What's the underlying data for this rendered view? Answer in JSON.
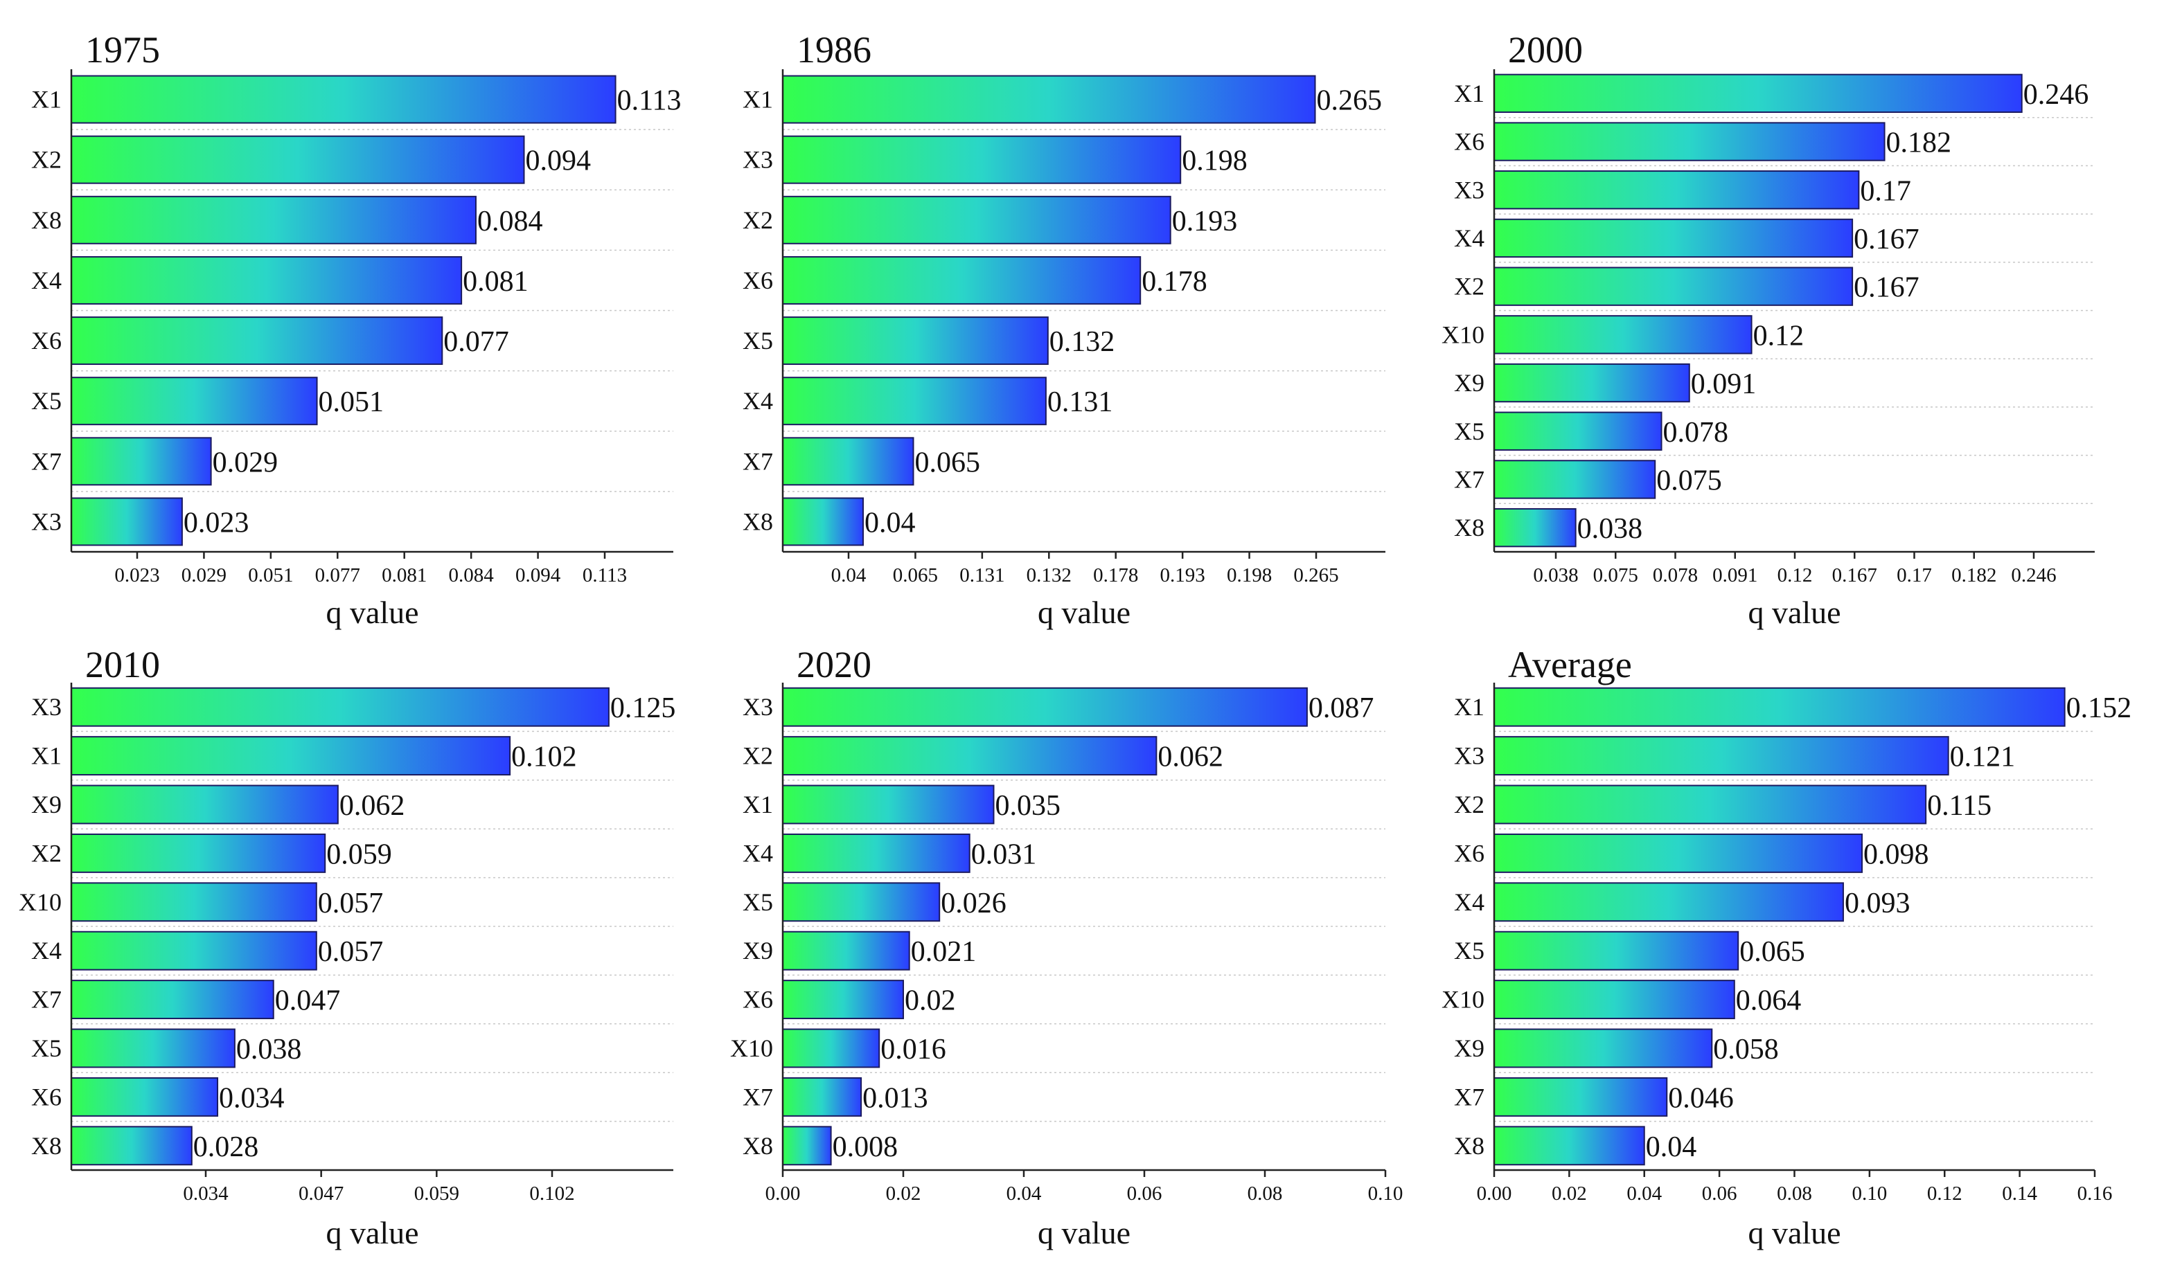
{
  "chart_data": [
    {
      "type": "bar",
      "orientation": "horizontal",
      "title": "1975",
      "xlabel": "q value",
      "categories": [
        "X1",
        "X2",
        "X8",
        "X4",
        "X6",
        "X5",
        "X7",
        "X3"
      ],
      "values": [
        0.113,
        0.094,
        0.084,
        0.081,
        0.077,
        0.051,
        0.029,
        0.023
      ],
      "value_labels": [
        "0.113",
        "0.094",
        "0.084",
        "0.081",
        "0.077",
        "0.051",
        "0.029",
        "0.023"
      ],
      "xticks": [
        0.023,
        0.029,
        0.051,
        0.077,
        0.081,
        0.084,
        0.094,
        0.113
      ],
      "xtick_labels": [
        "0.023",
        "0.029",
        "0.051",
        "0.077",
        "0.081",
        "0.084",
        "0.094",
        "0.113"
      ],
      "tick_scale": "categorical-equal-spacing",
      "xlim": [
        0,
        0.125
      ]
    },
    {
      "type": "bar",
      "orientation": "horizontal",
      "title": "1986",
      "xlabel": "q value",
      "categories": [
        "X1",
        "X3",
        "X2",
        "X6",
        "X5",
        "X4",
        "X7",
        "X8"
      ],
      "values": [
        0.265,
        0.198,
        0.193,
        0.178,
        0.132,
        0.131,
        0.065,
        0.04
      ],
      "value_labels": [
        "0.265",
        "0.198",
        "0.193",
        "0.178",
        "0.132",
        "0.131",
        "0.065",
        "0.04"
      ],
      "xticks": [
        0.04,
        0.065,
        0.131,
        0.132,
        0.178,
        0.193,
        0.198,
        0.265
      ],
      "xtick_labels": [
        "0.04",
        "0.065",
        "0.131",
        "0.132",
        "0.178",
        "0.193",
        "0.198",
        "0.265"
      ],
      "tick_scale": "categorical-equal-spacing",
      "xlim": [
        0,
        0.3
      ]
    },
    {
      "type": "bar",
      "orientation": "horizontal",
      "title": "2000",
      "xlabel": "q value",
      "categories": [
        "X1",
        "X6",
        "X3",
        "X4",
        "X2",
        "X10",
        "X9",
        "X5",
        "X7",
        "X8"
      ],
      "values": [
        0.246,
        0.182,
        0.17,
        0.167,
        0.167,
        0.12,
        0.091,
        0.078,
        0.075,
        0.038
      ],
      "value_labels": [
        "0.246",
        "0.182",
        "0.17",
        "0.167",
        "0.167",
        "0.12",
        "0.091",
        "0.078",
        "0.075",
        "0.038"
      ],
      "xticks": [
        0.038,
        0.075,
        0.078,
        0.091,
        0.12,
        0.167,
        0.17,
        0.182,
        0.246
      ],
      "xtick_labels": [
        "0.038",
        "0.075",
        "0.078",
        "0.091",
        "0.12",
        "0.167",
        "0.17",
        "0.182",
        "0.246"
      ],
      "tick_scale": "categorical-equal-spacing",
      "xlim": [
        0,
        0.28
      ]
    },
    {
      "type": "bar",
      "orientation": "horizontal",
      "title": "2010",
      "xlabel": "q value",
      "categories": [
        "X3",
        "X1",
        "X9",
        "X2",
        "X10",
        "X4",
        "X7",
        "X5",
        "X6",
        "X8"
      ],
      "values": [
        0.125,
        0.102,
        0.062,
        0.059,
        0.057,
        0.057,
        0.047,
        0.038,
        0.034,
        0.028
      ],
      "value_labels": [
        "0.125",
        "0.102",
        "0.062",
        "0.059",
        "0.057",
        "0.057",
        "0.047",
        "0.038",
        "0.034",
        "0.028"
      ],
      "xticks": [
        0.034,
        0.047,
        0.059,
        0.102
      ],
      "xtick_labels": [
        "0.034",
        "0.047",
        "0.059",
        "0.102"
      ],
      "tick_scale": "categorical-equal-spacing",
      "xlim": [
        0,
        0.14
      ]
    },
    {
      "type": "bar",
      "orientation": "horizontal",
      "title": "2020",
      "xlabel": "q value",
      "categories": [
        "X3",
        "X2",
        "X1",
        "X4",
        "X5",
        "X9",
        "X6",
        "X10",
        "X7",
        "X8"
      ],
      "values": [
        0.087,
        0.062,
        0.035,
        0.031,
        0.026,
        0.021,
        0.02,
        0.016,
        0.013,
        0.008
      ],
      "value_labels": [
        "0.087",
        "0.062",
        "0.035",
        "0.031",
        "0.026",
        "0.021",
        "0.02",
        "0.016",
        "0.013",
        "0.008"
      ],
      "xticks": [
        0,
        0.02,
        0.04,
        0.06,
        0.08,
        0.1
      ],
      "xtick_labels": [
        "0.00",
        "0.02",
        "0.04",
        "0.06",
        "0.08",
        "0.10"
      ],
      "tick_scale": "linear",
      "xlim": [
        0,
        0.1
      ]
    },
    {
      "type": "bar",
      "orientation": "horizontal",
      "title": "Average",
      "xlabel": "q value",
      "categories": [
        "X1",
        "X3",
        "X2",
        "X6",
        "X4",
        "X5",
        "X10",
        "X9",
        "X7",
        "X8"
      ],
      "values": [
        0.152,
        0.121,
        0.115,
        0.098,
        0.093,
        0.065,
        0.064,
        0.058,
        0.046,
        0.04
      ],
      "value_labels": [
        "0.152",
        "0.121",
        "0.115",
        "0.098",
        "0.093",
        "0.065",
        "0.064",
        "0.058",
        "0.046",
        "0.04"
      ],
      "xticks": [
        0,
        0.02,
        0.04,
        0.06,
        0.08,
        0.1,
        0.12,
        0.14,
        0.16
      ],
      "xtick_labels": [
        "0.00",
        "0.02",
        "0.04",
        "0.06",
        "0.08",
        "0.10",
        "0.12",
        "0.14",
        "0.16"
      ],
      "tick_scale": "linear",
      "xlim": [
        0,
        0.16
      ]
    }
  ],
  "colors": {
    "bar_start": "#33ff4d",
    "bar_mid": "#2ad6c8",
    "bar_end": "#2b3dff",
    "bar_edge": "#1a1a60"
  }
}
